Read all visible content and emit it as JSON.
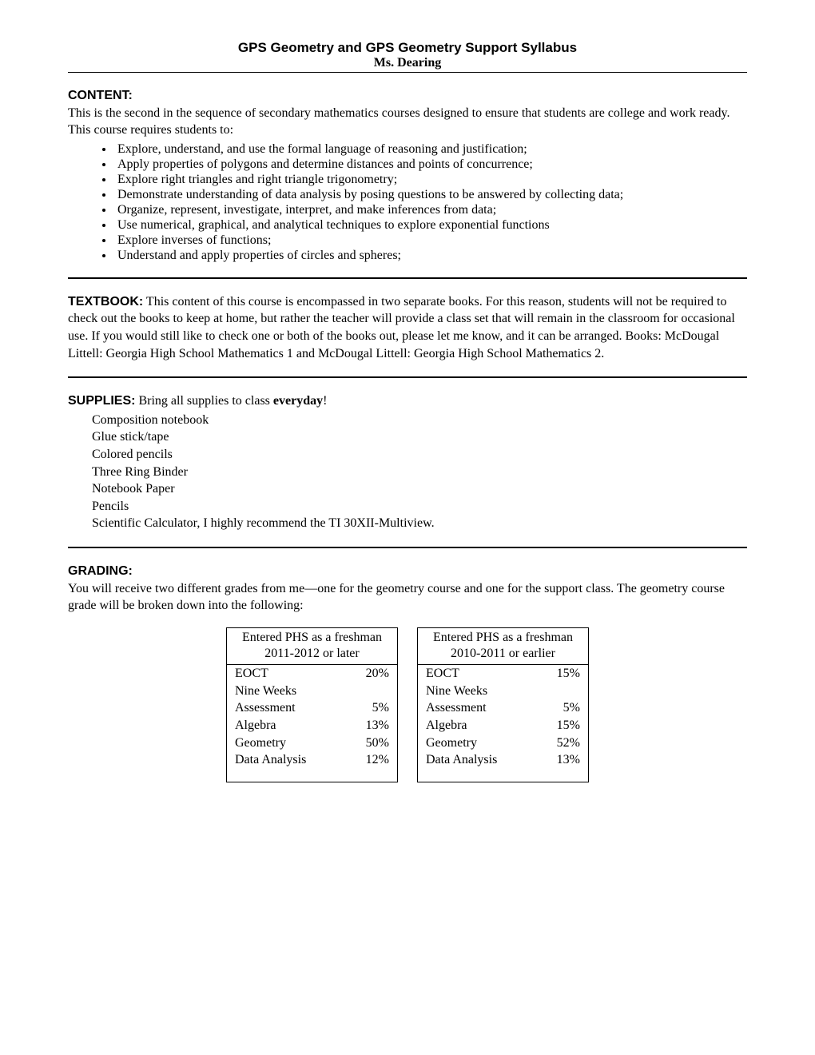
{
  "header": {
    "title": "GPS Geometry and GPS Geometry Support Syllabus",
    "subtitle": "Ms. Dearing"
  },
  "content": {
    "heading": "CONTENT:",
    "intro": "This is the second in the sequence of secondary mathematics courses designed to ensure that students are college and work ready. This course requires students to:",
    "items": [
      "Explore, understand, and use the formal language of reasoning and justification;",
      "Apply properties of polygons and determine distances and points of concurrence;",
      "Explore right triangles and right triangle trigonometry;",
      "Demonstrate understanding of data analysis by posing questions to be answered by collecting data;",
      "Organize, represent, investigate, interpret, and make inferences from data;",
      "Use numerical, graphical, and analytical techniques to explore exponential functions",
      "Explore inverses of functions;",
      "Understand and apply properties of circles and spheres;"
    ]
  },
  "textbook": {
    "heading": "TEXTBOOK:",
    "body": "  This content of this course is encompassed in two separate books. For this reason, students will not be required to check out the books to keep at home, but rather the teacher will provide a class set that will remain in the classroom for occasional use. If you would still like to check one or both of the books out, please let me know, and it can be arranged. Books: McDougal Littell: Georgia High School Mathematics 1 and McDougal Littell: Georgia High School Mathematics 2."
  },
  "supplies": {
    "heading": "SUPPLIES:",
    "lead": "  Bring all supplies to class ",
    "emphasis": "everyday",
    "tail": "!",
    "items": [
      "Composition notebook",
      "Glue stick/tape",
      "Colored pencils",
      "Three Ring Binder",
      "Notebook Paper",
      "Pencils",
      "Scientific Calculator, I highly recommend the TI 30XII-Multiview."
    ]
  },
  "grading": {
    "heading": "GRADING:",
    "intro": "You will receive two different grades from me—one for the geometry course and one for the support class. The geometry course grade will be broken down into the following:",
    "tables": [
      {
        "header": "Entered PHS as a freshman 2011-2012 or later",
        "rows": [
          {
            "label": "EOCT",
            "pct": "20%"
          },
          {
            "label": "Nine Weeks Assessment",
            "pct": "5%"
          },
          {
            "label": "Algebra",
            "pct": "13%"
          },
          {
            "label": "Geometry",
            "pct": "50%"
          },
          {
            "label": "Data Analysis",
            "pct": "12%"
          }
        ]
      },
      {
        "header": "Entered PHS as a freshman 2010-2011 or earlier",
        "rows": [
          {
            "label": "EOCT",
            "pct": "15%"
          },
          {
            "label": "Nine Weeks Assessment",
            "pct": "5%"
          },
          {
            "label": "Algebra",
            "pct": "15%"
          },
          {
            "label": "Geometry",
            "pct": "52%"
          },
          {
            "label": "Data Analysis",
            "pct": "13%"
          }
        ]
      }
    ]
  }
}
